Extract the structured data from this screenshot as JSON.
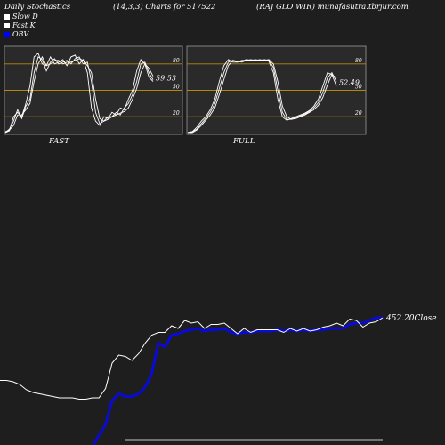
{
  "header": {
    "title": "Daily Stochastics",
    "params": "(14,3,3) Charts for 517522",
    "symbol_site": "(RAJ GLO WIR) munafasutra.tbrjur.com"
  },
  "legend": [
    {
      "label": "Slow  D",
      "color": "#ffffff"
    },
    {
      "label": "Fast K",
      "color": "#ffffff"
    },
    {
      "label": "OBV",
      "color": "#0000ff"
    }
  ],
  "colors": {
    "background": "#1e1e1e",
    "panel_bg": "#2a2a2a",
    "level_line": "#b8860b",
    "stoch_line": "#ffffff",
    "obv": "#0a0ad6",
    "price": "#ffffff"
  },
  "chart_data": [
    {
      "type": "line",
      "name": "stochastics-fast",
      "panel_label": "FAST",
      "ylim": [
        0,
        100
      ],
      "ticks": [
        20,
        50,
        80
      ],
      "value_label": "59.53",
      "series": [
        {
          "values": [
            2,
            4,
            20,
            25,
            20,
            35,
            55,
            88,
            92,
            80,
            78,
            88,
            80,
            82,
            85,
            78,
            88,
            90,
            80,
            85,
            70,
            30,
            15,
            10,
            20,
            18,
            25,
            22,
            30,
            28,
            40,
            50,
            72,
            85,
            80,
            65,
            60
          ]
        },
        {
          "values": [
            2,
            6,
            15,
            28,
            18,
            32,
            40,
            70,
            88,
            85,
            72,
            82,
            86,
            80,
            82,
            84,
            80,
            86,
            88,
            80,
            82,
            60,
            25,
            12,
            15,
            20,
            20,
            25,
            22,
            30,
            35,
            45,
            60,
            80,
            82,
            70,
            62
          ]
        },
        {
          "values": [
            3,
            5,
            10,
            22,
            22,
            28,
            35,
            60,
            80,
            88,
            78,
            80,
            84,
            84,
            80,
            82,
            82,
            84,
            86,
            84,
            78,
            70,
            40,
            18,
            15,
            17,
            20,
            22,
            24,
            26,
            30,
            40,
            52,
            70,
            80,
            75,
            66
          ]
        }
      ]
    },
    {
      "type": "line",
      "name": "stochastics-full",
      "panel_label": "FULL",
      "ylim": [
        0,
        100
      ],
      "ticks": [
        20,
        50,
        80
      ],
      "value_label": "52.49",
      "series": [
        {
          "values": [
            2,
            3,
            8,
            15,
            20,
            28,
            40,
            60,
            78,
            85,
            82,
            82,
            84,
            84,
            84,
            84,
            84,
            84,
            83,
            70,
            40,
            20,
            16,
            18,
            20,
            22,
            24,
            27,
            32,
            40,
            55,
            70,
            68,
            55
          ]
        },
        {
          "values": [
            2,
            3,
            6,
            12,
            18,
            25,
            35,
            52,
            70,
            82,
            84,
            82,
            83,
            85,
            84,
            85,
            84,
            85,
            84,
            76,
            50,
            25,
            17,
            17,
            19,
            21,
            23,
            26,
            30,
            36,
            48,
            64,
            70,
            60
          ]
        },
        {
          "values": [
            2,
            2,
            5,
            10,
            16,
            22,
            30,
            45,
            62,
            78,
            84,
            83,
            82,
            84,
            85,
            84,
            85,
            84,
            85,
            80,
            60,
            32,
            20,
            17,
            18,
            20,
            22,
            25,
            28,
            33,
            42,
            56,
            68,
            64
          ]
        }
      ]
    },
    {
      "type": "line",
      "name": "price-obv",
      "close_label": "452.20Close",
      "series": [
        {
          "name": "Close",
          "values": [
            405,
            405,
            404,
            402,
            398,
            396,
            395,
            394,
            393,
            392,
            392,
            392,
            391,
            391,
            392,
            392,
            399,
            418,
            424,
            423,
            420,
            425,
            433,
            439,
            441,
            441,
            446,
            444,
            450,
            448,
            449,
            444,
            447,
            447,
            448,
            444,
            440,
            444,
            441,
            443,
            443,
            443,
            443,
            441,
            444,
            442,
            444,
            442,
            443,
            445,
            446,
            448,
            446,
            451,
            450,
            445,
            448,
            449,
            452
          ]
        },
        {
          "name": "OBV",
          "values": [
            null,
            null,
            null,
            null,
            null,
            null,
            null,
            null,
            null,
            null,
            null,
            null,
            null,
            null,
            null,
            null,
            372,
            390,
            395,
            393,
            393,
            395,
            400,
            410,
            433,
            430,
            439,
            440,
            442,
            443,
            444,
            442,
            443,
            443,
            444,
            441,
            440,
            441,
            441,
            442,
            442,
            442,
            443,
            442,
            443,
            442,
            443,
            442,
            443,
            443,
            444,
            444,
            444,
            447,
            448,
            448,
            450,
            452,
            452
          ]
        }
      ]
    }
  ]
}
